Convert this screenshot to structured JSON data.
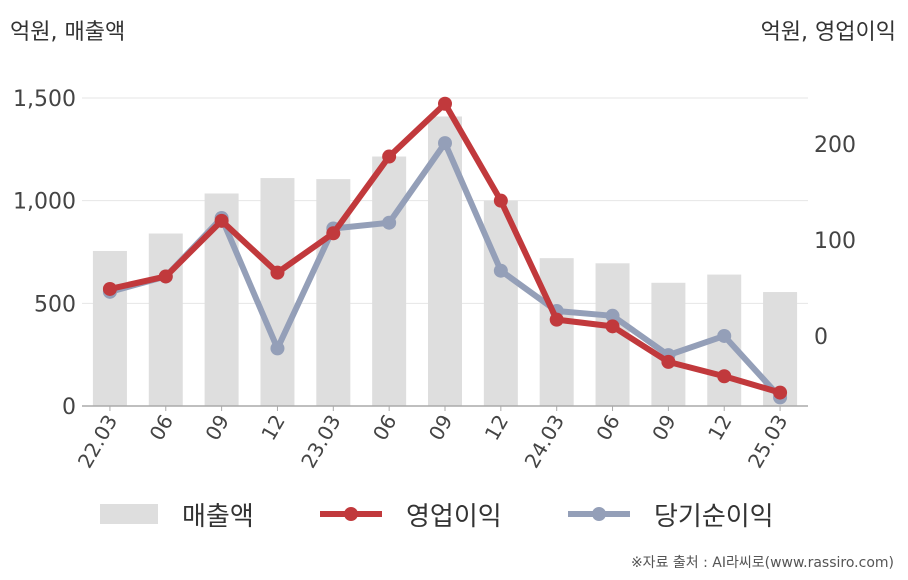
{
  "units": {
    "left": "억원, 매출액",
    "right": "억원, 영업이익"
  },
  "source": "※자료 출처 : AI라씨로(www.rassiro.com)",
  "colors": {
    "bar": "#dedede",
    "operating": "#c1393c",
    "net": "#949fb8",
    "grid": "#e6e6e6",
    "axis": "#aaaaaa"
  },
  "chart_data": {
    "type": "bar",
    "categories": [
      "22.03",
      "06",
      "09",
      "12",
      "23.03",
      "06",
      "09",
      "12",
      "24.03",
      "06",
      "09",
      "12",
      "25.03"
    ],
    "left_axis": {
      "ticks": [
        0,
        500,
        1000,
        1500
      ],
      "tick_labels": [
        "0",
        "500",
        "1,000",
        "1,500"
      ],
      "ylim": [
        0,
        1500
      ]
    },
    "right_axis": {
      "ticks": [
        0,
        100,
        200
      ],
      "tick_labels": [
        "0",
        "100",
        "200"
      ],
      "ylim": [
        -73,
        248
      ]
    },
    "grid": true,
    "legend_position": "bottom",
    "series": [
      {
        "name": "매출액",
        "type": "bar",
        "axis": "left",
        "values": [
          755,
          840,
          1035,
          1110,
          1105,
          1215,
          1410,
          1000,
          720,
          695,
          600,
          640,
          555
        ]
      },
      {
        "name": "영업이익",
        "type": "line",
        "axis": "right",
        "values": [
          49,
          62,
          120,
          66,
          107,
          187,
          242,
          141,
          17,
          10,
          -27,
          -42,
          -59
        ]
      },
      {
        "name": "당기순이익",
        "type": "line",
        "axis": "right",
        "values": [
          46,
          62,
          123,
          -13,
          112,
          118,
          201,
          68,
          26,
          21,
          -20,
          0,
          -64
        ]
      }
    ]
  }
}
